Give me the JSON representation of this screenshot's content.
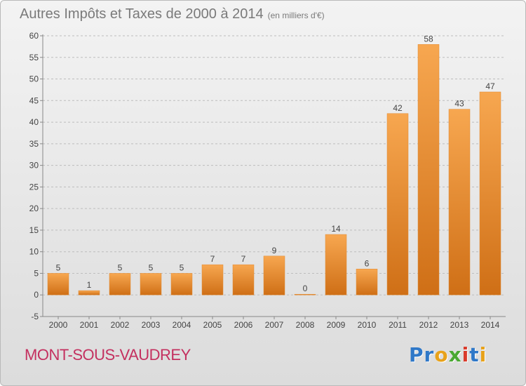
{
  "header": {
    "title": "Autres Impôts et Taxes de 2000 à 2014",
    "subtitle": "(en milliers d'€)"
  },
  "footer": {
    "commune": "MONT-SOUS-VAUDREY",
    "logo_text": "Proxiti",
    "logo_letters": [
      {
        "ch": "P",
        "color": "#2f78c8"
      },
      {
        "ch": "r",
        "color": "#2f78c8"
      },
      {
        "ch": "o",
        "color": "#e8a21a"
      },
      {
        "ch": "x",
        "color": "#4aa832"
      },
      {
        "ch": "i",
        "color": "#d93a2b"
      },
      {
        "ch": "t",
        "color": "#2f78c8"
      },
      {
        "ch": "i",
        "color": "#e8a21a"
      }
    ]
  },
  "colors": {
    "bar_light": "#f7a750",
    "bar_dark": "#cf6f16",
    "axis_text": "#444444",
    "grid": "#bdbdbd",
    "commune": "#c4305f",
    "title": "#7a7a7a"
  },
  "chart_data": {
    "type": "bar",
    "title": "Autres Impôts et Taxes de 2000 à 2014",
    "subtitle": "(en milliers d'€)",
    "xlabel": "",
    "ylabel": "",
    "categories": [
      "2000",
      "2001",
      "2002",
      "2003",
      "2004",
      "2005",
      "2006",
      "2007",
      "2008",
      "2009",
      "2010",
      "2011",
      "2012",
      "2013",
      "2014"
    ],
    "values": [
      5,
      1,
      5,
      5,
      5,
      7,
      7,
      9,
      0,
      14,
      6,
      42,
      58,
      43,
      47
    ],
    "data_labels": [
      "5",
      "1",
      "5",
      "5",
      "5",
      "7",
      "7",
      "9",
      "0",
      "14",
      "6",
      "42",
      "58",
      "43",
      "47"
    ],
    "ylim": [
      -5,
      60
    ],
    "yticks": [
      -5,
      0,
      5,
      10,
      15,
      20,
      25,
      30,
      35,
      40,
      45,
      50,
      55,
      60
    ],
    "ytick_labels": [
      "-5",
      "0",
      "5",
      "10",
      "15",
      "20",
      "25",
      "30",
      "35",
      "40",
      "45",
      "50",
      "55",
      "60"
    ],
    "grid": true,
    "grid_style": "dashed horizontal",
    "legend": "none"
  }
}
